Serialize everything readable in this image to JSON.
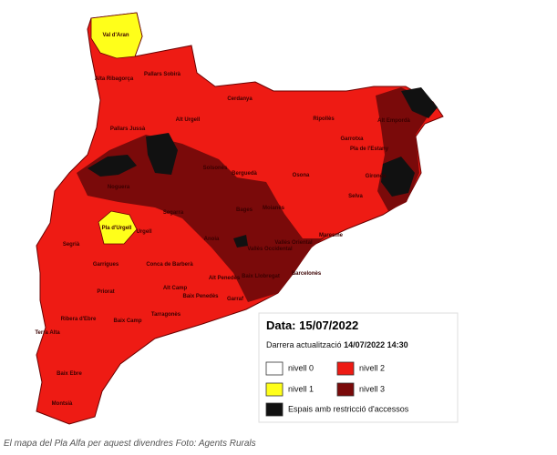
{
  "map": {
    "regions": [
      "Val d'Aran",
      "Alta Ribagorça",
      "Pallars Sobirà",
      "Pallars Jussà",
      "Alt Urgell",
      "Cerdanya",
      "Ripollès",
      "Garrotxa",
      "Alt Empordà",
      "Pla de l'Estany",
      "Gironès",
      "Selva",
      "Osona",
      "Berguedà",
      "Solsonès",
      "Noguera",
      "Segarra",
      "Pla d'Urgell",
      "Urgell",
      "Segrià",
      "Bages",
      "Moianès",
      "Anoia",
      "Vallès Oriental",
      "Vallès Occidental",
      "Maresme",
      "Barcelonès",
      "Baix Llobregat",
      "Garrigues",
      "Conca de Barberà",
      "Alt Penedès",
      "Alt Camp",
      "Baix Penedès",
      "Garraf",
      "Priorat",
      "Tarragonès",
      "Baix Camp",
      "Ribera d'Ebre",
      "Terra Alta",
      "Baix Ebre",
      "Montsià"
    ],
    "legend": {
      "date_label": "Data:",
      "date": "15/07/2022",
      "updated_label": "Darrera actualització",
      "updated": "14/07/2022 14:30",
      "items": [
        {
          "label": "nivell 0",
          "color": "#ffffff"
        },
        {
          "label": "nivell 2",
          "color": "#ee1b14"
        },
        {
          "label": "nivell 1",
          "color": "#ffff1a"
        },
        {
          "label": "nivell 3",
          "color": "#7a0a0a"
        },
        {
          "label": "Espais amb restricció d'accessos",
          "color": "#111111"
        }
      ]
    }
  },
  "caption": "El mapa del Pla Alfa per aquest divendres Foto: Agents Rurals"
}
